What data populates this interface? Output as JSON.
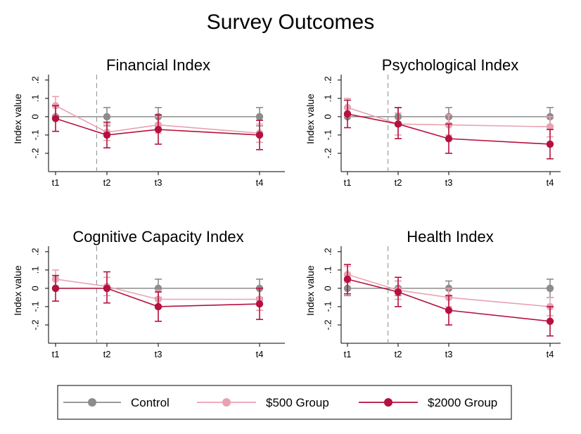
{
  "title": "Survey Outcomes",
  "chart_data": [
    {
      "type": "line",
      "title": "Financial Index",
      "xlabel": "",
      "ylabel": "Index value",
      "categories": [
        "t1",
        "t2",
        "t3",
        "t4"
      ],
      "x": [
        1,
        2,
        3,
        5
      ],
      "yticks": [
        "-.2",
        "-.1",
        "0",
        ".1",
        ".2"
      ],
      "ytick_values": [
        -0.2,
        -0.1,
        0,
        0.1,
        0.2
      ],
      "ylim": [
        -0.3,
        0.23
      ],
      "series": [
        {
          "name": "Control",
          "values": [
            0,
            0,
            0,
            0
          ],
          "lower": [
            0,
            -0.05,
            -0.05,
            -0.05
          ],
          "upper": [
            0,
            0.05,
            0.05,
            0.05
          ]
        },
        {
          "name": "$500 Group",
          "values": [
            0.06,
            -0.085,
            -0.045,
            -0.09
          ],
          "lower": [
            0.01,
            -0.13,
            -0.09,
            -0.14
          ],
          "upper": [
            0.11,
            -0.04,
            0,
            -0.04
          ]
        },
        {
          "name": "$2000 Group",
          "values": [
            -0.01,
            -0.1,
            -0.07,
            -0.1
          ],
          "lower": [
            -0.08,
            -0.17,
            -0.15,
            -0.18
          ],
          "upper": [
            0.06,
            -0.03,
            0.01,
            -0.02
          ]
        }
      ]
    },
    {
      "type": "line",
      "title": "Psychological Index",
      "xlabel": "",
      "ylabel": "Index value",
      "categories": [
        "t1",
        "t2",
        "t3",
        "t4"
      ],
      "x": [
        1,
        2,
        3,
        5
      ],
      "yticks": [
        "-.2",
        "-.1",
        "0",
        ".1",
        ".2"
      ],
      "ytick_values": [
        -0.2,
        -0.1,
        0,
        0.1,
        0.2
      ],
      "ylim": [
        -0.3,
        0.23
      ],
      "series": [
        {
          "name": "Control",
          "values": [
            0,
            0,
            0,
            0
          ],
          "lower": [
            0,
            -0.05,
            -0.05,
            -0.05
          ],
          "upper": [
            0,
            0.05,
            0.05,
            0.05
          ]
        },
        {
          "name": "$500 Group",
          "values": [
            0.05,
            -0.04,
            -0.045,
            -0.055
          ],
          "lower": [
            0,
            -0.1,
            -0.1,
            -0.11
          ],
          "upper": [
            0.1,
            0.02,
            0.01,
            0
          ]
        },
        {
          "name": "$2000 Group",
          "values": [
            0.015,
            -0.04,
            -0.12,
            -0.15
          ],
          "lower": [
            -0.06,
            -0.12,
            -0.2,
            -0.23
          ],
          "upper": [
            0.09,
            0.05,
            -0.04,
            -0.07
          ]
        }
      ]
    },
    {
      "type": "line",
      "title": "Cognitive Capacity Index",
      "xlabel": "",
      "ylabel": "Index value",
      "categories": [
        "t1",
        "t2",
        "t3",
        "t4"
      ],
      "x": [
        1,
        2,
        3,
        5
      ],
      "yticks": [
        "-.2",
        "-.1",
        "0",
        ".1",
        ".2"
      ],
      "ytick_values": [
        -0.2,
        -0.1,
        0,
        0.1,
        0.2
      ],
      "ylim": [
        -0.3,
        0.23
      ],
      "series": [
        {
          "name": "Control",
          "values": [
            0,
            0,
            0,
            0
          ],
          "lower": [
            0,
            0,
            -0.05,
            -0.05
          ],
          "upper": [
            0,
            0,
            0.05,
            0.05
          ]
        },
        {
          "name": "$500 Group",
          "values": [
            0.05,
            0.01,
            -0.06,
            -0.06
          ],
          "lower": [
            0,
            -0.04,
            -0.11,
            -0.12
          ],
          "upper": [
            0.1,
            0.06,
            -0.01,
            0
          ]
        },
        {
          "name": "$2000 Group",
          "values": [
            0,
            0,
            -0.1,
            -0.085
          ],
          "lower": [
            -0.07,
            -0.08,
            -0.18,
            -0.17
          ],
          "upper": [
            0.07,
            0.09,
            -0.02,
            0
          ]
        }
      ]
    },
    {
      "type": "line",
      "title": "Health Index",
      "xlabel": "",
      "ylabel": "Index value",
      "categories": [
        "t1",
        "t2",
        "t3",
        "t4"
      ],
      "x": [
        1,
        2,
        3,
        5
      ],
      "yticks": [
        "-.2",
        "-.1",
        "0",
        ".1",
        ".2"
      ],
      "ytick_values": [
        -0.2,
        -0.1,
        0,
        0.1,
        0.2
      ],
      "ylim": [
        -0.3,
        0.23
      ],
      "series": [
        {
          "name": "Control",
          "values": [
            0,
            0,
            0,
            0
          ],
          "lower": [
            -0.04,
            -0.04,
            -0.04,
            -0.05
          ],
          "upper": [
            0.04,
            0.04,
            0.04,
            0.05
          ]
        },
        {
          "name": "$500 Group",
          "values": [
            0.075,
            -0.01,
            -0.05,
            -0.1
          ],
          "lower": [
            0.03,
            -0.06,
            -0.1,
            -0.15
          ],
          "upper": [
            0.12,
            0.04,
            0,
            -0.05
          ]
        },
        {
          "name": "$2000 Group",
          "values": [
            0.05,
            -0.02,
            -0.12,
            -0.18
          ],
          "lower": [
            -0.03,
            -0.1,
            -0.2,
            -0.26
          ],
          "upper": [
            0.13,
            0.06,
            -0.04,
            -0.1
          ]
        }
      ]
    }
  ],
  "legend": {
    "position": "bottom",
    "items": [
      {
        "label": "Control",
        "color": "#8c8c8c"
      },
      {
        "label": "$500 Group",
        "color": "#e8a3b2"
      },
      {
        "label": "$2000 Group",
        "color": "#b5113f"
      }
    ]
  },
  "reference_line": {
    "style": "dashed",
    "color": "#8c8c8c",
    "x": 1.8
  }
}
